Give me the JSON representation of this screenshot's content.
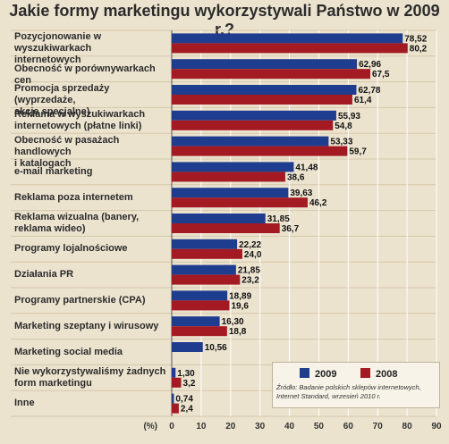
{
  "title": "Jakie formy marketingu wykorzystywali Państwo w 2009 r.?",
  "colors": {
    "s2009": "#1f3d8f",
    "s2008": "#a31a22",
    "background": "#ece3cf",
    "grid": "#ffffff"
  },
  "legend": {
    "s2009": "2009",
    "s2008": "2008"
  },
  "source": "Źródło: Badanie polskich sklepów internetowych, Internet Standard, wrzesień 2010 r.",
  "chart_data": {
    "type": "bar",
    "orientation": "horizontal",
    "title": "Jakie formy marketingu wykorzystywali Państwo w 2009 r.?",
    "xlabel": "(%)",
    "xlim": [
      0,
      90
    ],
    "xticks": [
      0,
      10,
      20,
      30,
      40,
      50,
      60,
      70,
      80,
      90
    ],
    "grid": true,
    "legend_position": "bottom-right",
    "categories": [
      "Pozycjonowanie w wyszukiwarkach internetowych",
      "Obecność w porównywarkach cen",
      "Promocja sprzedaży (wyprzedaże, akcje specjalne)",
      "Reklama w wyszukiwarkach internetowych (płatne linki)",
      "Obecność w pasażach handlowych i katalogach",
      "e-mail marketing",
      "Reklama poza internetem",
      "Reklama wizualna (banery, reklama wideo)",
      "Programy lojalnościowe",
      "Działania PR",
      "Programy partnerskie (CPA)",
      "Marketing szeptany i wirusowy",
      "Marketing social media",
      "Nie wykorzystywaliśmy żadnych form marketingu",
      "Inne"
    ],
    "category_lines": [
      [
        "Pozycjonowanie w wyszukiwarkach",
        "internetowych"
      ],
      [
        "Obecność w porównywarkach cen"
      ],
      [
        "Promocja sprzedaży (wyprzedaże,",
        "akcje specjalne)"
      ],
      [
        "Reklama w wyszukiwarkach",
        "internetowych (płatne linki)"
      ],
      [
        "Obecność w pasażach handlowych",
        "i katalogach"
      ],
      [
        "e-mail marketing"
      ],
      [
        "Reklama poza internetem"
      ],
      [
        "Reklama wizualna (banery,",
        "reklama wideo)"
      ],
      [
        "Programy lojalnościowe"
      ],
      [
        "Działania PR"
      ],
      [
        "Programy partnerskie (CPA)"
      ],
      [
        "Marketing szeptany i wirusowy"
      ],
      [
        "Marketing social media"
      ],
      [
        "Nie wykorzystywaliśmy żadnych",
        "form marketingu"
      ],
      [
        "Inne"
      ]
    ],
    "series": [
      {
        "name": "2009",
        "values": [
          78.52,
          62.96,
          62.78,
          55.93,
          53.33,
          41.48,
          39.63,
          31.85,
          22.22,
          21.85,
          18.89,
          16.3,
          10.56,
          1.3,
          0.74
        ],
        "labels": [
          "78,52",
          "62,96",
          "62,78",
          "55,93",
          "53,33",
          "41,48",
          "39,63",
          "31,85",
          "22,22",
          "21,85",
          "18,89",
          "16,30",
          "10,56",
          "1,30",
          "0,74"
        ]
      },
      {
        "name": "2008",
        "values": [
          80.2,
          67.5,
          61.4,
          54.8,
          59.7,
          38.6,
          46.2,
          36.7,
          24.0,
          23.2,
          19.6,
          18.8,
          null,
          3.2,
          2.4
        ],
        "labels": [
          "80,2",
          "67,5",
          "61,4",
          "54,8",
          "59,7",
          "38,6",
          "46,2",
          "36,7",
          "24,0",
          "23,2",
          "19,6",
          "18,8",
          null,
          "3,2",
          "2,4"
        ]
      }
    ]
  }
}
